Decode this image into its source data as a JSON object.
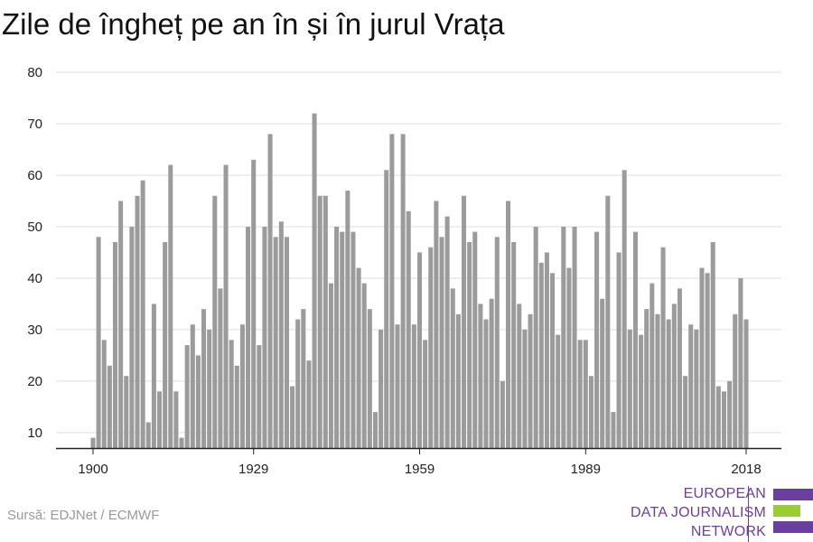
{
  "title": "Zile de îngheț pe an în și în jurul Vrața",
  "source": "Sursă: EDJNet / ECMWF",
  "logo": {
    "lines": [
      "EUROPEAN",
      "DATA JOURNALISM",
      "NETWORK"
    ],
    "text_color": "#6b3fa0",
    "bar_colors": [
      "#6b3fa0",
      "#9acd32",
      "#6b3fa0"
    ]
  },
  "colors": {
    "bar": "#9b9b9b",
    "grid": "#dddddd",
    "axis": "#222222"
  },
  "chart_data": {
    "type": "bar",
    "title": "Zile de îngheț pe an în și în jurul Vrața",
    "xlabel": "",
    "ylabel": "",
    "x_start": 1900,
    "x_end": 2020,
    "x_ticks": [
      1900,
      1929,
      1959,
      1989,
      2018
    ],
    "y_ticks": [
      10,
      20,
      30,
      40,
      50,
      60,
      70,
      80
    ],
    "ylim": [
      7,
      80
    ],
    "grid": true,
    "values": [
      9,
      48,
      28,
      23,
      47,
      55,
      21,
      50,
      56,
      59,
      12,
      35,
      18,
      47,
      62,
      18,
      9,
      27,
      31,
      25,
      34,
      30,
      56,
      38,
      62,
      28,
      23,
      31,
      50,
      63,
      27,
      50,
      68,
      48,
      51,
      48,
      19,
      32,
      34,
      24,
      72,
      56,
      56,
      39,
      50,
      49,
      57,
      49,
      42,
      39,
      34,
      14,
      30,
      61,
      68,
      31,
      68,
      53,
      31,
      45,
      28,
      46,
      55,
      48,
      52,
      38,
      33,
      56,
      47,
      49,
      35,
      32,
      36,
      48,
      20,
      55,
      47,
      35,
      30,
      33,
      50,
      43,
      45,
      41,
      29,
      50,
      42,
      50,
      28,
      28,
      21,
      49,
      36,
      56,
      14,
      45,
      61,
      30,
      49,
      29,
      34,
      39,
      33,
      46,
      32,
      35,
      38,
      21,
      31,
      30,
      42,
      41,
      47,
      19,
      18,
      20,
      33,
      40,
      32
    ]
  }
}
